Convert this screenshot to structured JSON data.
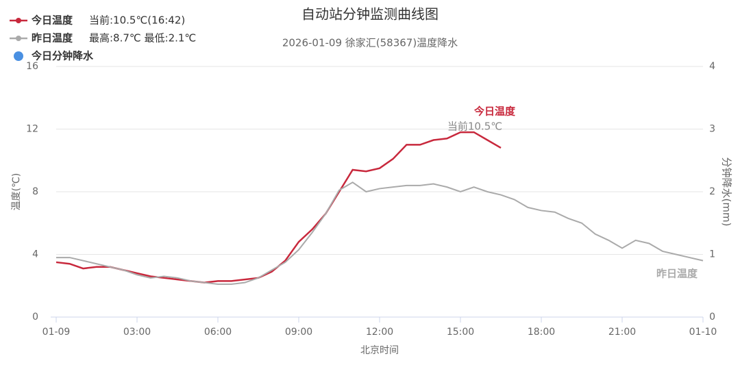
{
  "chart_data": {
    "type": "line",
    "title": "自动站分钟监测曲线图",
    "subtitle": "2026-01-09 徐家汇(58367)温度降水",
    "x_label": "北京时间",
    "y_label": "温度(℃)",
    "y2_label": "分钟降水(mm)",
    "legend": "top-left",
    "grid": true,
    "x": [
      0,
      0.5,
      1,
      1.5,
      2,
      2.5,
      3,
      3.5,
      4,
      4.5,
      5,
      5.5,
      6,
      6.5,
      7,
      7.5,
      8,
      8.5,
      9,
      9.5,
      10,
      10.5,
      11,
      11.5,
      12,
      12.5,
      13,
      13.5,
      14,
      14.5,
      15,
      15.5,
      16,
      16.5,
      17,
      17.5,
      18,
      18.5,
      19,
      19.5,
      20,
      20.5,
      21,
      21.5,
      22,
      22.5,
      23,
      23.5,
      24
    ],
    "series": [
      {
        "name": "今日温度",
        "note": "当前:10.5℃(16:42)",
        "color": "#c8283c",
        "values": [
          3.5,
          3.4,
          3.1,
          3.2,
          3.2,
          3.0,
          2.8,
          2.6,
          2.5,
          2.4,
          2.3,
          2.2,
          2.3,
          2.3,
          2.4,
          2.5,
          2.9,
          3.6,
          4.8,
          5.6,
          6.6,
          8.0,
          9.4,
          9.3,
          9.5,
          10.1,
          11.0,
          11.0,
          11.3,
          11.4,
          11.8,
          11.8,
          11.3,
          10.8,
          null,
          null,
          null,
          null,
          null,
          null,
          null,
          null,
          null,
          null,
          null,
          null,
          null,
          null,
          null
        ]
      },
      {
        "name": "昨日温度",
        "note": "最高:8.7℃ 最低:2.1℃",
        "color": "#aaaaaa",
        "values": [
          3.8,
          3.8,
          3.6,
          3.4,
          3.2,
          3.0,
          2.7,
          2.5,
          2.6,
          2.5,
          2.3,
          2.2,
          2.1,
          2.1,
          2.2,
          2.5,
          3.0,
          3.5,
          4.3,
          5.4,
          6.6,
          8.1,
          8.6,
          8.0,
          8.2,
          8.3,
          8.4,
          8.4,
          8.5,
          8.3,
          8.0,
          8.3,
          8.0,
          7.8,
          7.5,
          7.0,
          6.8,
          6.7,
          6.3,
          6.0,
          5.3,
          4.9,
          4.4,
          4.9,
          4.7,
          4.2,
          4.0,
          3.8,
          3.6
        ]
      },
      {
        "name": "今日分钟降水",
        "color": "#4a90e2",
        "axis": "y2",
        "values": [
          null,
          null,
          null,
          null,
          null,
          null,
          null,
          null,
          null,
          null,
          null,
          null,
          null,
          null,
          null,
          null,
          null,
          null,
          null,
          null,
          null,
          null,
          null,
          null,
          null,
          null,
          null,
          null,
          null,
          null,
          null,
          null,
          null,
          null,
          null,
          null,
          null,
          null,
          null,
          null,
          null,
          null,
          null,
          null,
          null,
          null,
          null,
          null,
          null
        ]
      }
    ],
    "annotations": [
      {
        "text": "今日温度"
      },
      {
        "text": "当前10.5℃"
      },
      {
        "text": "昨日温度"
      }
    ],
    "xlim": [
      0,
      24
    ],
    "xticks": [
      {
        "value": 0,
        "label": "01-09"
      },
      {
        "value": 3,
        "label": "03:00"
      },
      {
        "value": 6,
        "label": "06:00"
      },
      {
        "value": 9,
        "label": "09:00"
      },
      {
        "value": 12,
        "label": "12:00"
      },
      {
        "value": 15,
        "label": "15:00"
      },
      {
        "value": 18,
        "label": "18:00"
      },
      {
        "value": 21,
        "label": "21:00"
      },
      {
        "value": 24,
        "label": "01-10"
      }
    ],
    "ylim": [
      0,
      16
    ],
    "yticks": [
      0,
      4,
      8,
      12,
      16
    ],
    "y2lim": [
      0,
      4
    ],
    "y2ticks": [
      0,
      1,
      2,
      3,
      4
    ]
  }
}
